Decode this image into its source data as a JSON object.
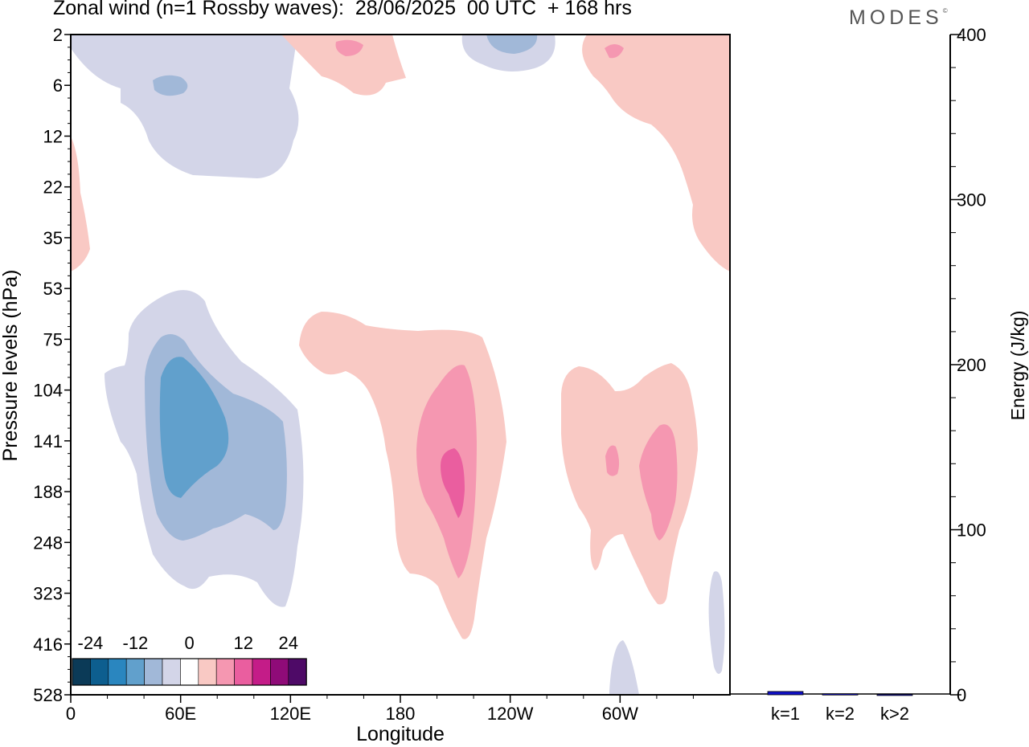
{
  "header": {
    "title": "Zonal wind (n=1 Rossby waves):  28/06/2025  00 UTC  + 168 hrs",
    "brand": "MODES",
    "brand_mark": "©"
  },
  "chart_data": [
    {
      "type": "heatmap",
      "title": "Zonal wind (n=1 Rossby waves):  28/06/2025  00 UTC  + 168 hrs",
      "xlabel": "Longitude",
      "ylabel": "Pressure levels (hPa)",
      "x_ticks": [
        "0",
        "60E",
        "120E",
        "180",
        "120W",
        "60W"
      ],
      "y_ticks": [
        "2",
        "6",
        "12",
        "22",
        "35",
        "53",
        "75",
        "104",
        "141",
        "188",
        "248",
        "323",
        "416",
        "528"
      ],
      "colorbar": {
        "tick_labels": [
          "-24",
          "-12",
          "0",
          "12",
          "24"
        ],
        "levels": [
          -30,
          -25,
          -20,
          -15,
          -10,
          -5,
          5,
          10,
          15,
          20,
          25,
          30
        ],
        "colors": [
          "#0b3a57",
          "#0d5e8f",
          "#2a86bf",
          "#61a0cc",
          "#a1b8d8",
          "#d3d5e8",
          "#ffffff",
          "#f9c9c4",
          "#f597b1",
          "#ea5e9f",
          "#c41c88",
          "#8f0b78",
          "#4e0a67"
        ]
      },
      "features": [
        {
          "sign": "negative",
          "peak_level": -15,
          "lon_range": [
            0,
            105
          ],
          "pressure_range": [
            2,
            12
          ]
        },
        {
          "sign": "negative",
          "peak_level": -15,
          "lon_range": [
            220,
            265
          ],
          "pressure_range": [
            2,
            4
          ]
        },
        {
          "sign": "positive",
          "peak_level": 10,
          "lon_range": [
            120,
            175
          ],
          "pressure_range": [
            2,
            6
          ]
        },
        {
          "sign": "positive",
          "peak_level": 10,
          "lon_range": [
            280,
            360
          ],
          "pressure_range": [
            2,
            50
          ]
        },
        {
          "sign": "negative",
          "peak_level": -15,
          "lon_range": [
            15,
            105
          ],
          "pressure_range": [
            55,
            350
          ]
        },
        {
          "sign": "positive",
          "peak_level": 15,
          "lon_range": [
            110,
            215
          ],
          "pressure_range": [
            70,
            430
          ]
        },
        {
          "sign": "positive",
          "peak_level": 10,
          "lon_range": [
            245,
            340
          ],
          "pressure_range": [
            100,
            330
          ]
        }
      ]
    },
    {
      "type": "bar",
      "categories": [
        "k=1",
        "k=2",
        "k>2"
      ],
      "values": [
        2,
        0.6,
        0.3
      ],
      "ylabel": "Energy (J/kg)",
      "ylim": [
        0,
        400
      ],
      "y_ticks": [
        "0",
        "100",
        "200",
        "300",
        "400"
      ],
      "bar_color": "#1010c8"
    }
  ]
}
